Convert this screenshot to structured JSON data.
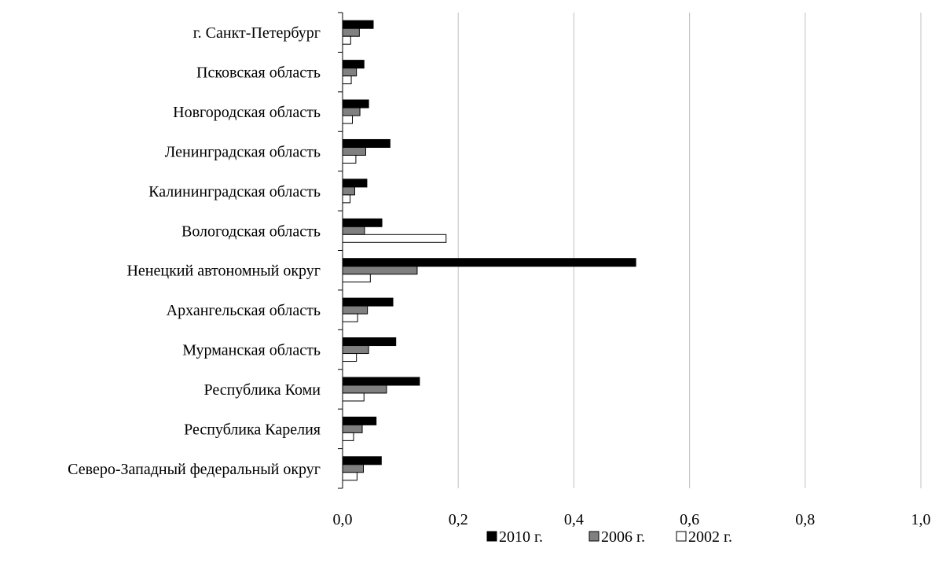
{
  "chart_data": {
    "type": "bar",
    "orientation": "horizontal",
    "categories": [
      "Северо-Западный федеральный округ",
      "Республика Карелия",
      "Республика Коми",
      "Мурманская область",
      "Архангельская область",
      "Ненецкий автономный округ",
      "Вологодская область",
      "Калининградская область",
      "Ленинградская область",
      "Новгородская область",
      "Псковская область",
      "г. Санкт-Петербург"
    ],
    "series": [
      {
        "name": "2010 г.",
        "color": "#000000",
        "values": [
          0.067,
          0.058,
          0.133,
          0.092,
          0.087,
          0.507,
          0.068,
          0.042,
          0.082,
          0.045,
          0.037,
          0.053
        ]
      },
      {
        "name": "2006 г.",
        "color": "#808080",
        "values": [
          0.036,
          0.034,
          0.076,
          0.045,
          0.043,
          0.129,
          0.038,
          0.021,
          0.04,
          0.03,
          0.024,
          0.029
        ]
      },
      {
        "name": "2002 г.",
        "color": "#ffffff",
        "values": [
          0.025,
          0.019,
          0.037,
          0.024,
          0.026,
          0.048,
          0.179,
          0.013,
          0.023,
          0.017,
          0.015,
          0.014
        ]
      }
    ],
    "xlim": [
      0,
      1.0
    ],
    "xticks": [
      0.0,
      0.2,
      0.4,
      0.6,
      0.8,
      1.0
    ],
    "xtick_labels": [
      "0,0",
      "0,2",
      "0,4",
      "0,6",
      "0,8",
      "1,0"
    ],
    "grid": "vertical",
    "legend_position": "bottom",
    "title": "",
    "xlabel": "",
    "ylabel": ""
  }
}
